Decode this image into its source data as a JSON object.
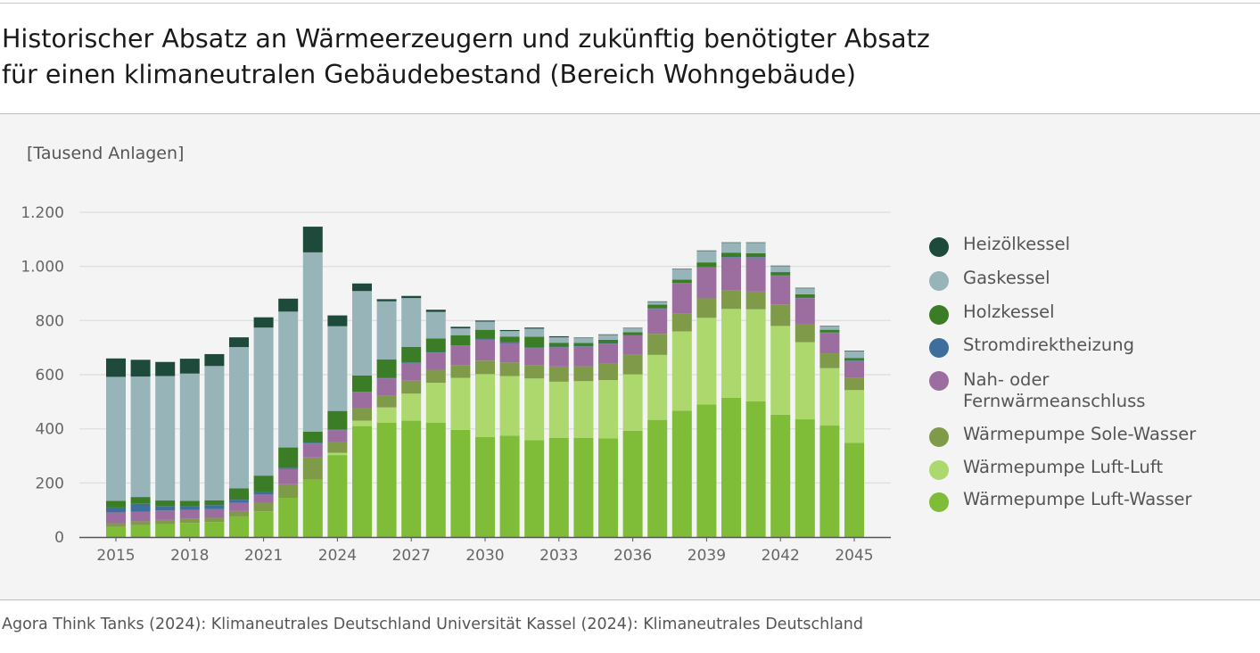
{
  "title": {
    "line1": "Historischer Absatz an Wärmeerzeugern und zukünftig benötigter Absatz",
    "line2": "für einen klimaneutralen Gebäudebestand (Bereich Wohngebäude)"
  },
  "unit_label": "[Tausend Anlagen]",
  "source": "Agora Think Tanks (2024): Klimaneutrales Deutschland Universität Kassel (2024): Klimaneutrales Deutschland",
  "colors": {
    "heizoel": "#1e4a3c",
    "gas": "#97b4b9",
    "holz": "#3b7d27",
    "strom": "#3d6e9c",
    "nahfern": "#9c6e9f",
    "wp_sole": "#7f9b4a",
    "wp_luftluft": "#acd86d",
    "wp_luftwasser": "#7fbc37",
    "grid": "#e0e0e0",
    "axis": "#555555",
    "panel_bg": "#f4f4f4"
  },
  "chart_data": {
    "type": "bar",
    "stacked": true,
    "ylim": [
      0,
      1200
    ],
    "y_ticks": [
      0,
      200,
      400,
      600,
      800,
      1000,
      1200
    ],
    "y_tick_labels": [
      "0",
      "200",
      "400",
      "600",
      "800",
      "1.000",
      "1.200"
    ],
    "x_tick_labels": [
      "2015",
      "2018",
      "2021",
      "2024",
      "2027",
      "2030",
      "2033",
      "2036",
      "2039",
      "2042",
      "2045"
    ],
    "grid": "horizontal",
    "legend_position": "right",
    "categories": [
      "2015",
      "2016",
      "2017",
      "2018",
      "2019",
      "2020",
      "2021",
      "2022",
      "2023",
      "2024",
      "2025",
      "2026",
      "2027",
      "2028",
      "2029",
      "2030",
      "2031",
      "2032",
      "2033",
      "2034",
      "2035",
      "2036",
      "2037",
      "2038",
      "2039",
      "2040",
      "2041",
      "2042",
      "2043",
      "2044",
      "2045"
    ],
    "series": [
      {
        "name": "Wärmepumpe Luft-Wasser",
        "key": "wp_luftwasser",
        "values": [
          37,
          44,
          48,
          52,
          55,
          76,
          95,
          145,
          212,
          303,
          410,
          422,
          430,
          422,
          396,
          370,
          375,
          358,
          366,
          366,
          365,
          393,
          433,
          467,
          490,
          515,
          502,
          452,
          435,
          412,
          348
        ]
      },
      {
        "name": "Wärmepumpe Luft-Luft",
        "key": "wp_luftluft",
        "values": [
          0,
          0,
          0,
          0,
          0,
          0,
          0,
          0,
          0,
          8,
          20,
          57,
          100,
          148,
          192,
          232,
          220,
          228,
          208,
          210,
          215,
          208,
          240,
          293,
          320,
          328,
          340,
          328,
          285,
          212,
          195
        ]
      },
      {
        "name": "Wärmepumpe Sole-Wasser",
        "key": "wp_sole",
        "values": [
          14,
          14,
          15,
          16,
          16,
          20,
          32,
          50,
          82,
          40,
          45,
          45,
          48,
          48,
          48,
          50,
          50,
          50,
          56,
          55,
          60,
          72,
          78,
          65,
          72,
          68,
          65,
          80,
          68,
          55,
          45
        ]
      },
      {
        "name": "Nah- oder Fernwärmeanschluss",
        "key": "nahfern",
        "values": [
          40,
          35,
          35,
          32,
          32,
          30,
          30,
          56,
          52,
          44,
          60,
          62,
          65,
          64,
          70,
          78,
          72,
          62,
          72,
          72,
          75,
          72,
          92,
          112,
          115,
          122,
          126,
          105,
          95,
          75,
          62
        ]
      },
      {
        "name": "Stromdirektheizung",
        "key": "strom",
        "values": [
          18,
          30,
          15,
          14,
          15,
          12,
          8,
          5,
          3,
          3,
          2,
          2,
          2,
          2,
          2,
          2,
          2,
          2,
          2,
          2,
          2,
          2,
          2,
          2,
          2,
          2,
          2,
          2,
          2,
          2,
          2
        ]
      },
      {
        "name": "Holzkessel",
        "key": "holz",
        "values": [
          25,
          25,
          22,
          20,
          18,
          42,
          62,
          75,
          40,
          68,
          60,
          68,
          58,
          50,
          38,
          34,
          22,
          40,
          14,
          12,
          12,
          10,
          14,
          12,
          16,
          16,
          14,
          12,
          12,
          10,
          10
        ]
      },
      {
        "name": "Gaskessel",
        "key": "gas",
        "values": [
          458,
          445,
          460,
          470,
          496,
          522,
          547,
          502,
          663,
          313,
          312,
          215,
          180,
          98,
          25,
          30,
          20,
          30,
          20,
          18,
          18,
          14,
          10,
          38,
          42,
          36,
          38,
          22,
          22,
          12,
          25
        ]
      },
      {
        "name": "Heizölkessel",
        "key": "heizoel",
        "values": [
          68,
          62,
          52,
          55,
          44,
          36,
          38,
          48,
          95,
          40,
          28,
          8,
          8,
          8,
          6,
          4,
          4,
          4,
          4,
          2,
          2,
          2,
          2,
          2,
          2,
          2,
          2,
          2,
          2,
          2,
          2
        ]
      }
    ]
  },
  "legend": {
    "items": [
      {
        "label": "Heizölkessel",
        "key": "heizoel"
      },
      {
        "label": "Gaskessel",
        "key": "gas"
      },
      {
        "label": "Holzkessel",
        "key": "holz"
      },
      {
        "label": "Stromdirektheizung",
        "key": "strom"
      },
      {
        "label": "Nah- oder Fernwärmeanschluss",
        "key": "nahfern"
      },
      {
        "label": "Wärmepumpe Sole-Wasser",
        "key": "wp_sole"
      },
      {
        "label": "Wärmepumpe Luft-Luft",
        "key": "wp_luftluft"
      },
      {
        "label": "Wärmepumpe Luft-Wasser",
        "key": "wp_luftwasser"
      }
    ]
  }
}
